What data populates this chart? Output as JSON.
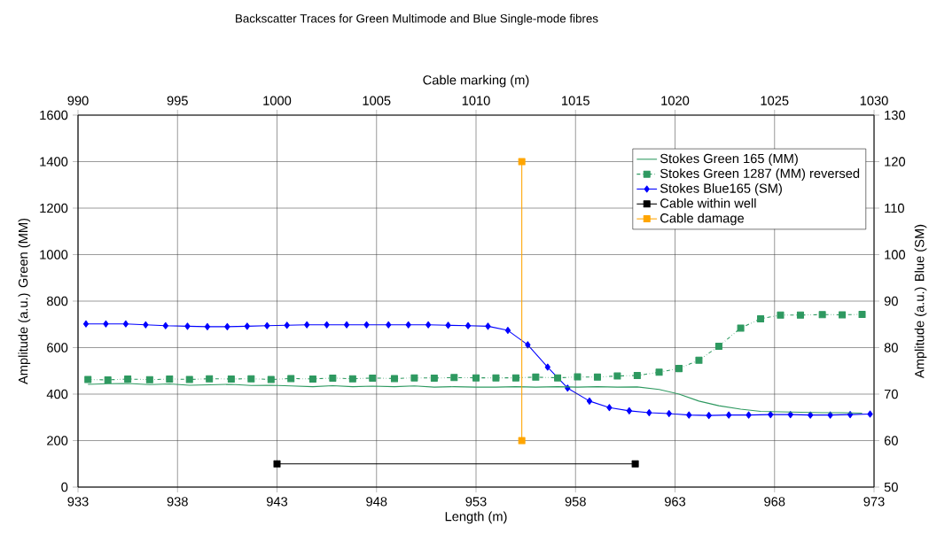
{
  "chart_data": {
    "type": "line",
    "title": "Backscatter Traces for Green Multimode and Blue Single-mode fibres",
    "xlabel": "Length (m)",
    "x2label": "Cable marking (m)",
    "ylabel": "Amplitude (a.u.) Green (MM)",
    "y2label": "Amplitude (a.u.) Blue (SM)",
    "xlim": [
      933,
      973
    ],
    "xticks": [
      933,
      938,
      943,
      948,
      953,
      958,
      963,
      968,
      973
    ],
    "x2lim": [
      990,
      1030
    ],
    "x2ticks": [
      990,
      995,
      1000,
      1005,
      1010,
      1015,
      1020,
      1025,
      1030
    ],
    "ylim": [
      0,
      1600
    ],
    "yticks": [
      0,
      200,
      400,
      600,
      800,
      1000,
      1200,
      1400,
      1600
    ],
    "y2lim": [
      50,
      130
    ],
    "y2ticks": [
      50,
      60,
      70,
      80,
      90,
      100,
      110,
      120,
      130
    ],
    "grid": true,
    "legend": "top right",
    "series": [
      {
        "name": "Stokes Green  165 (MM)",
        "color": "#2e9960",
        "marker": "none",
        "line_style": "solid",
        "x": [
          933.5,
          934.5,
          935.5,
          936.6,
          937.6,
          938.6,
          939.6,
          940.7,
          941.7,
          942.7,
          943.7,
          944.8,
          945.8,
          946.8,
          947.8,
          948.9,
          949.9,
          950.9,
          951.9,
          953.0,
          954.0,
          955.0,
          956.0,
          957.1,
          958.1,
          959.1,
          960.1,
          961.1,
          962.2,
          963.2,
          964.2,
          965.2,
          966.3,
          967.3,
          968.3,
          969.3,
          970.4,
          971.4,
          972.4
        ],
        "values": [
          442,
          445,
          446,
          441,
          444,
          438,
          440,
          442,
          437,
          438,
          435,
          432,
          436,
          432,
          434,
          432,
          435,
          430,
          432,
          430,
          430,
          432,
          430,
          432,
          430,
          432,
          430,
          431,
          420,
          400,
          370,
          350,
          335,
          326,
          324,
          322,
          320,
          320,
          318
        ]
      },
      {
        "name": "Stokes Green 1287 (MM) reversed",
        "color": "#2e9960",
        "marker": "square",
        "line_style": "dotted",
        "x": [
          933.5,
          934.5,
          935.5,
          936.6,
          937.6,
          938.6,
          939.6,
          940.7,
          941.7,
          942.7,
          943.7,
          944.8,
          945.8,
          946.8,
          947.8,
          948.9,
          949.9,
          950.9,
          951.9,
          953.0,
          954.0,
          955.0,
          956.0,
          957.1,
          958.1,
          959.1,
          960.1,
          961.1,
          962.2,
          963.2,
          964.2,
          965.2,
          966.3,
          967.3,
          968.3,
          969.3,
          970.4,
          971.4,
          972.4
        ],
        "values": [
          463,
          461,
          465,
          462,
          465,
          463,
          466,
          465,
          466,
          463,
          467,
          465,
          469,
          466,
          469,
          467,
          470,
          469,
          471,
          470,
          470,
          470,
          473,
          470,
          474,
          473,
          478,
          480,
          494,
          510,
          546,
          606,
          684,
          724,
          740,
          740,
          742,
          741,
          743
        ]
      },
      {
        "name": "Stokes Blue165 (SM)",
        "color": "#0000ff",
        "marker": "diamond",
        "line_style": "solid",
        "axis": "y2",
        "x": [
          933.4,
          934.4,
          935.4,
          936.4,
          937.4,
          938.5,
          939.5,
          940.5,
          941.5,
          942.5,
          943.5,
          944.5,
          945.5,
          946.5,
          947.5,
          948.6,
          949.6,
          950.6,
          951.6,
          952.6,
          953.6,
          954.6,
          955.6,
          956.6,
          957.6,
          958.7,
          959.7,
          960.7,
          961.7,
          962.7,
          963.7,
          964.7,
          965.7,
          966.7,
          967.8,
          968.8,
          969.8,
          970.8,
          971.8,
          972.8
        ],
        "values": [
          85.1,
          85.1,
          85.1,
          84.9,
          84.7,
          84.6,
          84.5,
          84.5,
          84.6,
          84.7,
          84.8,
          84.9,
          84.9,
          84.9,
          84.9,
          84.9,
          84.9,
          84.9,
          84.8,
          84.7,
          84.6,
          83.7,
          80.6,
          75.8,
          71.3,
          68.5,
          67.1,
          66.4,
          66.0,
          65.8,
          65.5,
          65.4,
          65.5,
          65.5,
          65.6,
          65.6,
          65.5,
          65.5,
          65.6,
          65.7
        ]
      },
      {
        "name": "Cable within well",
        "color": "#000000",
        "marker": "square",
        "line_style": "solid",
        "x": [
          943,
          961
        ],
        "values": [
          100,
          100
        ]
      },
      {
        "name": "Cable damage",
        "color": "#ffa500",
        "marker": "square",
        "line_style": "solid",
        "x": [
          955.3,
          955.3
        ],
        "values": [
          200,
          1400
        ]
      }
    ]
  }
}
